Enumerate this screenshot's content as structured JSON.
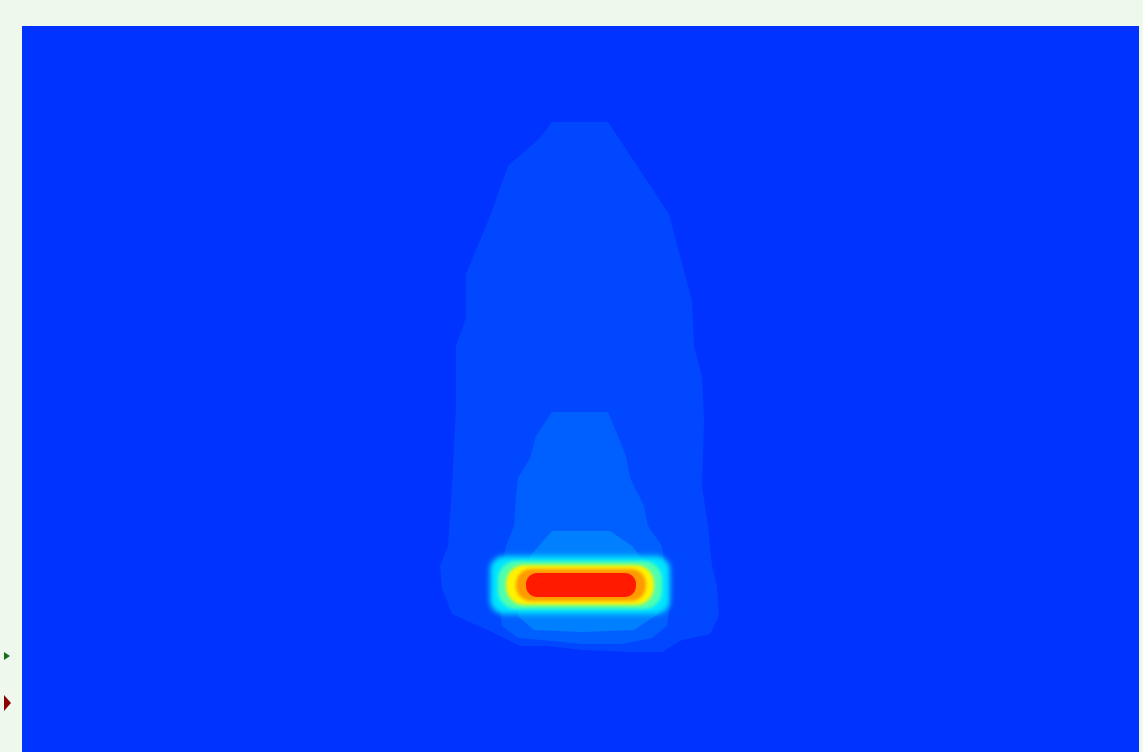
{
  "app": {
    "title": ""
  },
  "viewport": {
    "content": "heat-field-plot",
    "colors": {
      "background": "#0033ff",
      "contour_outer": "#0047ff",
      "contour_mid": "#0060ff",
      "contour_inner": "#0080ff",
      "hot_cyan": "#00e5ff",
      "hot_yellow": "#fff200",
      "hot_orange": "#ff9a00",
      "hot_red": "#ff1a00"
    }
  },
  "gutter": {
    "markers": [
      {
        "name": "green-marker",
        "color": "#1b6b1b"
      },
      {
        "name": "red-marker",
        "color": "#8b0000"
      }
    ]
  }
}
